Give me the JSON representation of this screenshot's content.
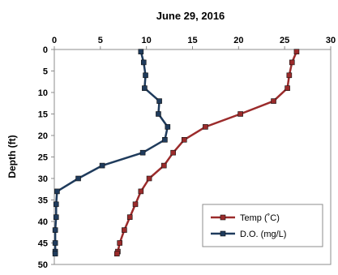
{
  "chart_data": {
    "type": "line",
    "title": "June 29, 2016",
    "xlabel": "",
    "ylabel": "Depth (ft)",
    "xlim": [
      0,
      30
    ],
    "ylim": [
      0,
      50
    ],
    "y_inverted": true,
    "x_axis_position": "top",
    "x_ticks": [
      "0",
      "5",
      "10",
      "15",
      "20",
      "25",
      "30"
    ],
    "y_ticks": [
      "0",
      "5",
      "10",
      "15",
      "20",
      "25",
      "30",
      "35",
      "40",
      "45",
      "50"
    ],
    "grid": false,
    "legend_position": "bottom-right",
    "series": [
      {
        "name": "Temp (˚C)",
        "color": "#9B2B2B",
        "marker": "square",
        "x": [
          26.3,
          25.8,
          25.5,
          25.3,
          23.8,
          20.2,
          16.4,
          14.1,
          12.9,
          11.9,
          10.3,
          9.4,
          8.8,
          8.2,
          7.6,
          7.1,
          6.9,
          6.8
        ],
        "y": [
          0.5,
          3,
          6,
          9,
          12,
          15,
          18,
          21,
          24,
          27,
          30,
          33,
          36,
          39,
          42,
          45,
          47,
          47.5
        ]
      },
      {
        "name": "D.O. (mg/L)",
        "color": "#1F3B5C",
        "marker": "square",
        "x": [
          9.4,
          9.7,
          9.9,
          9.8,
          11.4,
          11.3,
          12.3,
          12.0,
          9.6,
          5.2,
          2.6,
          0.3,
          0.2,
          0.2,
          0.1,
          0.1,
          0.1,
          0.1
        ],
        "y": [
          0.5,
          3,
          6,
          9,
          12,
          15,
          18,
          21,
          24,
          27,
          30,
          33,
          36,
          39,
          42,
          45,
          47,
          47.5
        ]
      }
    ]
  }
}
